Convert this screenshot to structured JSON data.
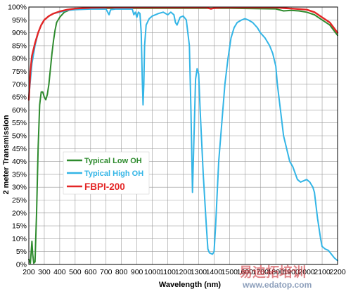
{
  "chart_data": {
    "type": "line",
    "title": "",
    "xlabel": "Wavelength (nm)",
    "ylabel": "2 meter Transmission",
    "xlim": [
      200,
      2200
    ],
    "ylim": [
      0,
      100
    ],
    "x_ticks": [
      "200",
      "300",
      "400",
      "500",
      "600",
      "700",
      "800",
      "900",
      "1000",
      "1100",
      "1200",
      "1300",
      "1400",
      "1500",
      "1600",
      "1700",
      "1800",
      "1900",
      "2000",
      "2100",
      "2200"
    ],
    "y_ticks": [
      "0%",
      "5%",
      "10%",
      "15%",
      "20%",
      "25%",
      "30%",
      "35%",
      "40%",
      "45%",
      "50%",
      "55%",
      "60%",
      "65%",
      "70%",
      "75%",
      "80%",
      "85%",
      "90%",
      "95%",
      "100%"
    ],
    "grid": true,
    "legend_position": "lower-left",
    "series": [
      {
        "name": "Typical Low OH",
        "color": "#2e8b2e",
        "points": [
          [
            200,
            2
          ],
          [
            210,
            0.5
          ],
          [
            220,
            9
          ],
          [
            225,
            4
          ],
          [
            232,
            0.5
          ],
          [
            240,
            1
          ],
          [
            250,
            20
          ],
          [
            260,
            45
          ],
          [
            270,
            62
          ],
          [
            280,
            67
          ],
          [
            290,
            67
          ],
          [
            300,
            65
          ],
          [
            310,
            64
          ],
          [
            320,
            66
          ],
          [
            330,
            70
          ],
          [
            340,
            76
          ],
          [
            350,
            82
          ],
          [
            360,
            87
          ],
          [
            370,
            91
          ],
          [
            380,
            94
          ],
          [
            400,
            96
          ],
          [
            430,
            98
          ],
          [
            470,
            99
          ],
          [
            550,
            99.5
          ],
          [
            700,
            99.5
          ],
          [
            1500,
            99.5
          ],
          [
            1800,
            99.3
          ],
          [
            1850,
            98.5
          ],
          [
            1900,
            98.7
          ],
          [
            1950,
            98.5
          ],
          [
            2000,
            98
          ],
          [
            2050,
            97
          ],
          [
            2100,
            95
          ],
          [
            2150,
            93
          ],
          [
            2200,
            89
          ]
        ]
      },
      {
        "name": "Typical High OH",
        "color": "#33b5e6",
        "points": [
          [
            200,
            65
          ],
          [
            220,
            78
          ],
          [
            240,
            85
          ],
          [
            260,
            90
          ],
          [
            280,
            93
          ],
          [
            300,
            95
          ],
          [
            330,
            96.5
          ],
          [
            360,
            97.5
          ],
          [
            400,
            98
          ],
          [
            450,
            98.7
          ],
          [
            500,
            99
          ],
          [
            600,
            99.2
          ],
          [
            700,
            99.2
          ],
          [
            720,
            97
          ],
          [
            730,
            99
          ],
          [
            760,
            99.2
          ],
          [
            870,
            99.2
          ],
          [
            880,
            97
          ],
          [
            890,
            98
          ],
          [
            900,
            96
          ],
          [
            910,
            98
          ],
          [
            920,
            97.5
          ],
          [
            928,
            90
          ],
          [
            935,
            72
          ],
          [
            940,
            62
          ],
          [
            945,
            70
          ],
          [
            950,
            85
          ],
          [
            960,
            93
          ],
          [
            980,
            95.5
          ],
          [
            1000,
            96.5
          ],
          [
            1040,
            97.5
          ],
          [
            1070,
            98
          ],
          [
            1100,
            97
          ],
          [
            1120,
            98
          ],
          [
            1140,
            97
          ],
          [
            1150,
            94
          ],
          [
            1160,
            93
          ],
          [
            1180,
            96
          ],
          [
            1200,
            96.5
          ],
          [
            1220,
            95
          ],
          [
            1240,
            85
          ],
          [
            1250,
            60
          ],
          [
            1260,
            28
          ],
          [
            1270,
            50
          ],
          [
            1280,
            72
          ],
          [
            1290,
            76
          ],
          [
            1300,
            74
          ],
          [
            1310,
            60
          ],
          [
            1330,
            35
          ],
          [
            1350,
            15
          ],
          [
            1360,
            6
          ],
          [
            1370,
            4.5
          ],
          [
            1390,
            4
          ],
          [
            1400,
            5
          ],
          [
            1410,
            15
          ],
          [
            1430,
            40
          ],
          [
            1450,
            55
          ],
          [
            1470,
            70
          ],
          [
            1490,
            80
          ],
          [
            1510,
            88
          ],
          [
            1530,
            92
          ],
          [
            1550,
            94
          ],
          [
            1580,
            95
          ],
          [
            1600,
            95.5
          ],
          [
            1620,
            95
          ],
          [
            1650,
            94
          ],
          [
            1680,
            92
          ],
          [
            1700,
            90
          ],
          [
            1730,
            88
          ],
          [
            1760,
            85
          ],
          [
            1780,
            82
          ],
          [
            1800,
            77
          ],
          [
            1810,
            70
          ],
          [
            1820,
            65
          ],
          [
            1830,
            60
          ],
          [
            1850,
            50
          ],
          [
            1870,
            45
          ],
          [
            1890,
            40
          ],
          [
            1910,
            38
          ],
          [
            1940,
            33
          ],
          [
            1960,
            32
          ],
          [
            1980,
            32.5
          ],
          [
            2000,
            33
          ],
          [
            2020,
            32
          ],
          [
            2040,
            30
          ],
          [
            2050,
            28
          ],
          [
            2060,
            23
          ],
          [
            2070,
            18
          ],
          [
            2080,
            14
          ],
          [
            2090,
            10
          ],
          [
            2100,
            7
          ],
          [
            2120,
            6
          ],
          [
            2140,
            5.5
          ],
          [
            2160,
            4
          ],
          [
            2180,
            2.5
          ],
          [
            2200,
            1.5
          ]
        ]
      },
      {
        "name": "FBPI-200",
        "color": "#e32626",
        "points": [
          [
            200,
            64
          ],
          [
            210,
            75
          ],
          [
            220,
            81
          ],
          [
            240,
            86
          ],
          [
            260,
            90
          ],
          [
            280,
            93
          ],
          [
            300,
            95
          ],
          [
            330,
            96.5
          ],
          [
            360,
            97.5
          ],
          [
            400,
            98.3
          ],
          [
            450,
            99
          ],
          [
            500,
            99.4
          ],
          [
            600,
            99.7
          ],
          [
            700,
            99.8
          ],
          [
            1350,
            99.8
          ],
          [
            1380,
            99.3
          ],
          [
            1400,
            99.6
          ],
          [
            1450,
            99.8
          ],
          [
            1800,
            99.8
          ],
          [
            1850,
            99.6
          ],
          [
            1900,
            99.4
          ],
          [
            1950,
            99.2
          ],
          [
            2000,
            99
          ],
          [
            2050,
            98
          ],
          [
            2100,
            96
          ],
          [
            2150,
            94
          ],
          [
            2200,
            90
          ]
        ]
      }
    ]
  },
  "watermark": {
    "text": "易迪拓培训",
    "url": "www.edatop.com"
  }
}
